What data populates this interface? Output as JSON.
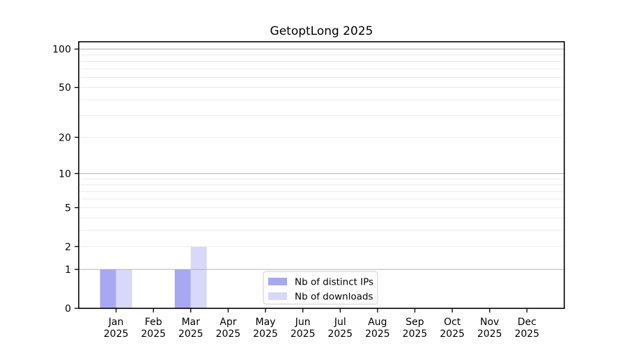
{
  "chart_data": {
    "type": "bar",
    "title": "GetoptLong 2025",
    "categories": [
      "Jan 2025",
      "Feb 2025",
      "Mar 2025",
      "Apr 2025",
      "May 2025",
      "Jun 2025",
      "Jul 2025",
      "Aug 2025",
      "Sep 2025",
      "Oct 2025",
      "Nov 2025",
      "Dec 2025"
    ],
    "series": [
      {
        "name": "Nb of distinct IPs",
        "color": "#a8a8f2",
        "values": [
          1,
          0,
          1,
          0,
          0,
          0,
          0,
          0,
          0,
          0,
          0,
          0
        ]
      },
      {
        "name": "Nb of downloads",
        "color": "#d8d8f8",
        "values": [
          1,
          0,
          2,
          0,
          0,
          0,
          0,
          0,
          0,
          0,
          0,
          0
        ]
      }
    ],
    "xlabel": "",
    "ylabel": "",
    "yscale": "log1p",
    "ylim": [
      0,
      114
    ],
    "yticks": [
      0,
      1,
      2,
      5,
      10,
      20,
      50,
      100
    ],
    "grid": {
      "on": true,
      "major_values": [
        1,
        10,
        100
      ],
      "minor_values": [
        2,
        3,
        4,
        5,
        6,
        7,
        8,
        9,
        20,
        30,
        40,
        50,
        60,
        70,
        80,
        90
      ],
      "major_color": "#b0b0b0",
      "minor_color": "#e9e9e9"
    },
    "legend": {
      "position": "lower center",
      "border_color": "#cccccc",
      "background": "#ffffff"
    },
    "axis_color": "#000000",
    "background": "#ffffff"
  }
}
